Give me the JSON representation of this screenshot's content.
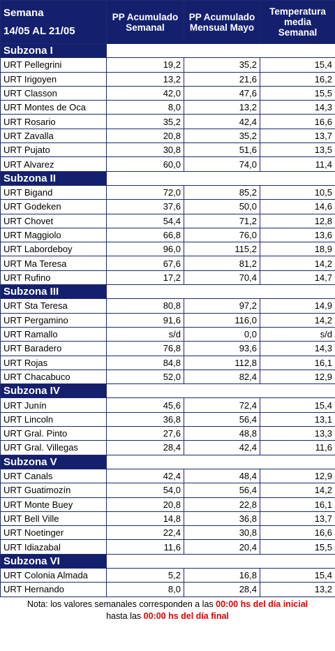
{
  "header": {
    "week_label": "Semana",
    "week_range": "14/05 AL 21/05",
    "columns": [
      [
        "PP Acumulado",
        "Semanal"
      ],
      [
        "PP Acumulado",
        "Mensual Mayo"
      ],
      [
        "Temperatura",
        "media",
        "Semanal"
      ]
    ]
  },
  "sections": [
    {
      "name": "Subzona I",
      "rows": [
        [
          "URT Pellegrini",
          "19,2",
          "35,2",
          "15,4"
        ],
        [
          "URT Irigoyen",
          "13,2",
          "21,6",
          "16,2"
        ],
        [
          "URT Classon",
          "42,0",
          "47,6",
          "15,5"
        ],
        [
          "URT Montes de Oca",
          "8,0",
          "13,2",
          "14,3"
        ],
        [
          "URT Rosario",
          "35,2",
          "42,4",
          "16,6"
        ],
        [
          "URT Zavalla",
          "20,8",
          "35,2",
          "13,7"
        ],
        [
          "URT Pujato",
          "30,8",
          "51,6",
          "13,5"
        ],
        [
          "URT Alvarez",
          "60,0",
          "74,0",
          "11,4"
        ]
      ]
    },
    {
      "name": "Subzona II",
      "rows": [
        [
          "URT Bigand",
          "72,0",
          "85,2",
          "10,5"
        ],
        [
          "URT Godeken",
          "37,6",
          "50,0",
          "14,6"
        ],
        [
          "URT Chovet",
          "54,4",
          "71,2",
          "12,8"
        ],
        [
          "URT Maggiolo",
          "66,8",
          "76,0",
          "13,6"
        ],
        [
          "URT Labordeboy",
          "96,0",
          "115,2",
          "18,9"
        ],
        [
          "URT Ma Teresa",
          "67,6",
          "81,2",
          "14,2"
        ],
        [
          "URT Rufino",
          "17,2",
          "70,4",
          "14,7"
        ]
      ]
    },
    {
      "name": "Subzona III",
      "rows": [
        [
          "URT Sta Teresa",
          "80,8",
          "97,2",
          "14,9"
        ],
        [
          "URT Pergamino",
          "91,6",
          "116,0",
          "14,2"
        ],
        [
          "URT Ramallo",
          "s/d",
          "0,0",
          "s/d"
        ],
        [
          "URT Baradero",
          "76,8",
          "93,6",
          "14,3"
        ],
        [
          "URT Rojas",
          "84,8",
          "112,8",
          "16,1"
        ],
        [
          "URT Chacabuco",
          "52,0",
          "82,4",
          "12,9"
        ]
      ]
    },
    {
      "name": "Subzona IV",
      "rows": [
        [
          "URT Junín",
          "45,6",
          "72,4",
          "15,4"
        ],
        [
          "URT Lincoln",
          "36,8",
          "56,4",
          "13,1"
        ],
        [
          "URT Gral. Pinto",
          "27,6",
          "48,8",
          "13,3"
        ],
        [
          "URT Gral. Villegas",
          "28,4",
          "42,4",
          "11,6"
        ]
      ]
    },
    {
      "name": "Subzona V",
      "rows": [
        [
          "URT Canals",
          "42,4",
          "48,4",
          "12,9"
        ],
        [
          "URT Guatimozín",
          "54,0",
          "56,4",
          "14,2"
        ],
        [
          "URT Monte Buey",
          "20,8",
          "22,8",
          "16,1"
        ],
        [
          "URT Bell Ville",
          "14,8",
          "36,8",
          "13,7"
        ],
        [
          "URT Noetinger",
          "22,4",
          "30,8",
          "16,6"
        ],
        [
          "URT Idiazabal",
          "11,6",
          "20,4",
          "15,5"
        ]
      ]
    },
    {
      "name": "Subzona VI",
      "rows": [
        [
          "URT Colonia Almada",
          "5,2",
          "16,8",
          "15,4"
        ],
        [
          "URT Hernando",
          "8,0",
          "28,4",
          "13,2"
        ]
      ]
    }
  ],
  "note": {
    "line1": [
      "Nota: los valores semanales corresponden a las ",
      "00:00 hs del día inicial"
    ],
    "line2": [
      "hasta las ",
      "00:00 hs del día final"
    ]
  }
}
